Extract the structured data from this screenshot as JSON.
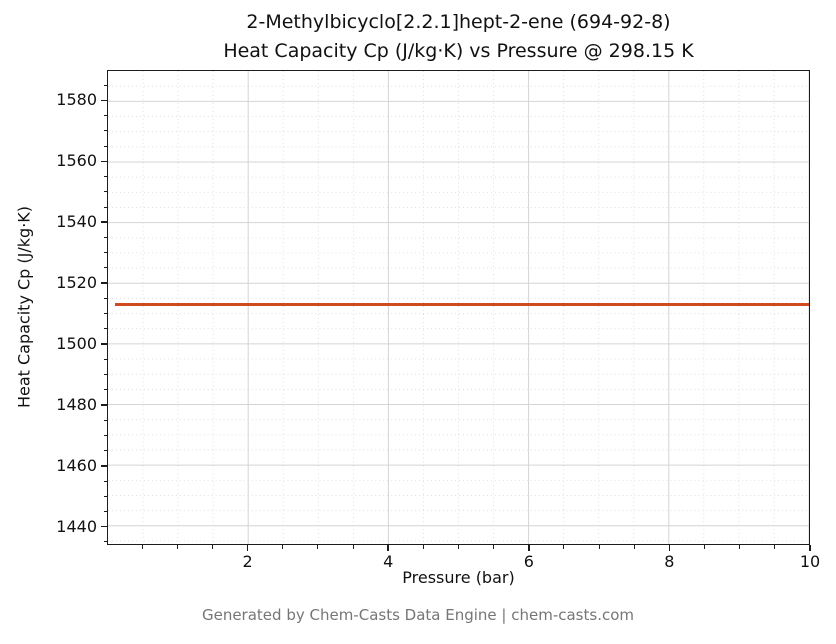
{
  "chart_data": {
    "type": "line",
    "title_line1": "2-Methylbicyclo[2.2.1]hept-2-ene (694-92-8)",
    "title_line2": "Heat Capacity Cp (J/kg·K) vs Pressure @ 298.15 K",
    "xlabel": "Pressure (bar)",
    "ylabel": "Heat Capacity Cp (J/kg·K)",
    "xlim": [
      0,
      10
    ],
    "ylim": [
      1434,
      1590
    ],
    "x_ticks": [
      2,
      4,
      6,
      8,
      10
    ],
    "y_ticks": [
      1440,
      1460,
      1480,
      1500,
      1520,
      1540,
      1560,
      1580
    ],
    "x_minor_step": 0.5,
    "y_minor_step": 5,
    "grid": "major-solid, minor-dotted",
    "legend": "none",
    "series": [
      {
        "name": "Heat Capacity Cp",
        "color": "#cf4a1f",
        "line_width": 3,
        "x": [
          0.1,
          10
        ],
        "y": [
          1513,
          1513
        ],
        "note": "constant value 1513 J/kg·K across 0.1–10 bar"
      }
    ]
  },
  "colors": {
    "line": "#cf4a1f",
    "grid_major": "#d4d4d4",
    "grid_minor": "#dcdcdc",
    "axis": "#1c1c1c",
    "footer": "#767676"
  },
  "footer": "Generated by Chem-Casts Data Engine | chem-casts.com"
}
